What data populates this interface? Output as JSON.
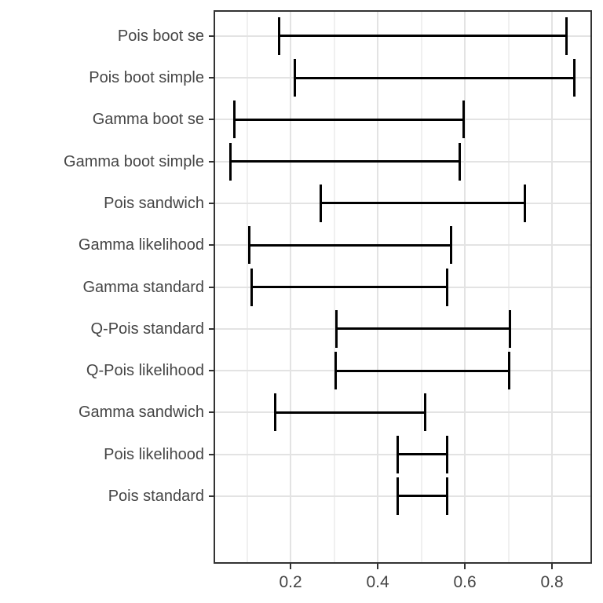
{
  "chart_data": {
    "type": "errorbar",
    "orientation": "horizontal",
    "title": "",
    "xlabel": "",
    "ylabel": "",
    "legend_position": "none",
    "categories": [
      "Pois boot se",
      "Pois boot simple",
      "Gamma boot se",
      "Gamma boot simple",
      "Pois sandwich",
      "Gamma likelihood",
      "Gamma standard",
      "Q-Pois standard",
      "Q-Pois likelihood",
      "Gamma sandwich",
      "Pois likelihood",
      "Pois standard"
    ],
    "intervals": [
      {
        "low": 0.173,
        "high": 0.834
      },
      {
        "low": 0.209,
        "high": 0.852
      },
      {
        "low": 0.071,
        "high": 0.598
      },
      {
        "low": 0.062,
        "high": 0.589
      },
      {
        "low": 0.269,
        "high": 0.738
      },
      {
        "low": 0.105,
        "high": 0.568
      },
      {
        "low": 0.111,
        "high": 0.559
      },
      {
        "low": 0.305,
        "high": 0.703
      },
      {
        "low": 0.304,
        "high": 0.701
      },
      {
        "low": 0.164,
        "high": 0.508
      },
      {
        "low": 0.445,
        "high": 0.56
      },
      {
        "low": 0.445,
        "high": 0.559
      }
    ],
    "xlim": [
      0.025,
      0.89
    ],
    "x_major_ticks": [
      0.2,
      0.4,
      0.6,
      0.8
    ],
    "x_tick_labels": [
      "0.2",
      "0.4",
      "0.6",
      "0.8"
    ],
    "x_minor_gridlines": [
      0.1,
      0.3,
      0.5,
      0.7
    ],
    "grid": {
      "vertical_major": true,
      "vertical_minor": true,
      "horizontal_major": true,
      "horizontal_minor": false
    },
    "style": {
      "bar_color": "#000000",
      "grid_major_color": "#E3E3E3",
      "grid_minor_color": "#F0F0F0",
      "panel_border_color": "#333333",
      "tick_color": "#333333",
      "axis_text_color": "#454545",
      "background": "#FFFFFF"
    }
  }
}
